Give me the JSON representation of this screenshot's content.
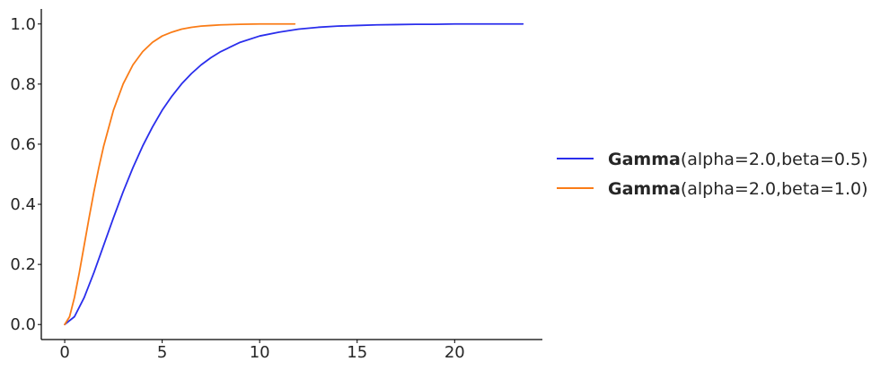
{
  "chart_data": {
    "type": "line",
    "title": "",
    "xlabel": "",
    "ylabel": "",
    "xlim": [
      -1.2,
      24.5
    ],
    "ylim": [
      -0.05,
      1.05
    ],
    "grid": false,
    "legend_placement": "right",
    "x_ticks": [
      {
        "value": 0,
        "label": "0"
      },
      {
        "value": 5,
        "label": "5"
      },
      {
        "value": 10,
        "label": "10"
      },
      {
        "value": 15,
        "label": "15"
      },
      {
        "value": 20,
        "label": "20"
      }
    ],
    "y_ticks": [
      {
        "value": 0.0,
        "label": "0.0"
      },
      {
        "value": 0.2,
        "label": "0.2"
      },
      {
        "value": 0.4,
        "label": "0.4"
      },
      {
        "value": 0.6,
        "label": "0.6"
      },
      {
        "value": 0.8,
        "label": "0.8"
      },
      {
        "value": 1.0,
        "label": "1.0"
      }
    ],
    "series": [
      {
        "name_bold": "Gamma",
        "name_rest": "(alpha=2.0,beta=0.5)",
        "color": "#2a2eec",
        "x": [
          0.0,
          0.5,
          1.0,
          1.5,
          2.0,
          2.5,
          3.0,
          3.5,
          4.0,
          4.5,
          5.0,
          5.5,
          6.0,
          6.5,
          7.0,
          7.5,
          8.0,
          9.0,
          10.0,
          11.0,
          12.0,
          13.0,
          14.0,
          15.0,
          16.0,
          17.0,
          18.0,
          19.0,
          20.0,
          21.0,
          22.0,
          23.5
        ],
        "y": [
          0.0,
          0.026,
          0.09,
          0.173,
          0.264,
          0.355,
          0.442,
          0.522,
          0.594,
          0.657,
          0.713,
          0.76,
          0.801,
          0.835,
          0.864,
          0.888,
          0.908,
          0.939,
          0.96,
          0.973,
          0.983,
          0.989,
          0.993,
          0.995,
          0.997,
          0.998,
          0.999,
          0.999,
          1.0,
          1.0,
          1.0,
          1.0
        ]
      },
      {
        "name_bold": "Gamma",
        "name_rest": "(alpha=2.0,beta=1.0)",
        "color": "#fa7c17",
        "x": [
          0.0,
          0.25,
          0.5,
          0.75,
          1.0,
          1.25,
          1.5,
          1.75,
          2.0,
          2.5,
          3.0,
          3.5,
          4.0,
          4.5,
          5.0,
          5.5,
          6.0,
          6.5,
          7.0,
          7.5,
          8.0,
          9.0,
          10.0,
          11.0,
          11.8
        ],
        "y": [
          0.0,
          0.026,
          0.09,
          0.173,
          0.264,
          0.355,
          0.442,
          0.522,
          0.594,
          0.713,
          0.801,
          0.864,
          0.908,
          0.939,
          0.96,
          0.973,
          0.983,
          0.989,
          0.993,
          0.995,
          0.997,
          0.999,
          1.0,
          1.0,
          1.0
        ]
      }
    ]
  }
}
